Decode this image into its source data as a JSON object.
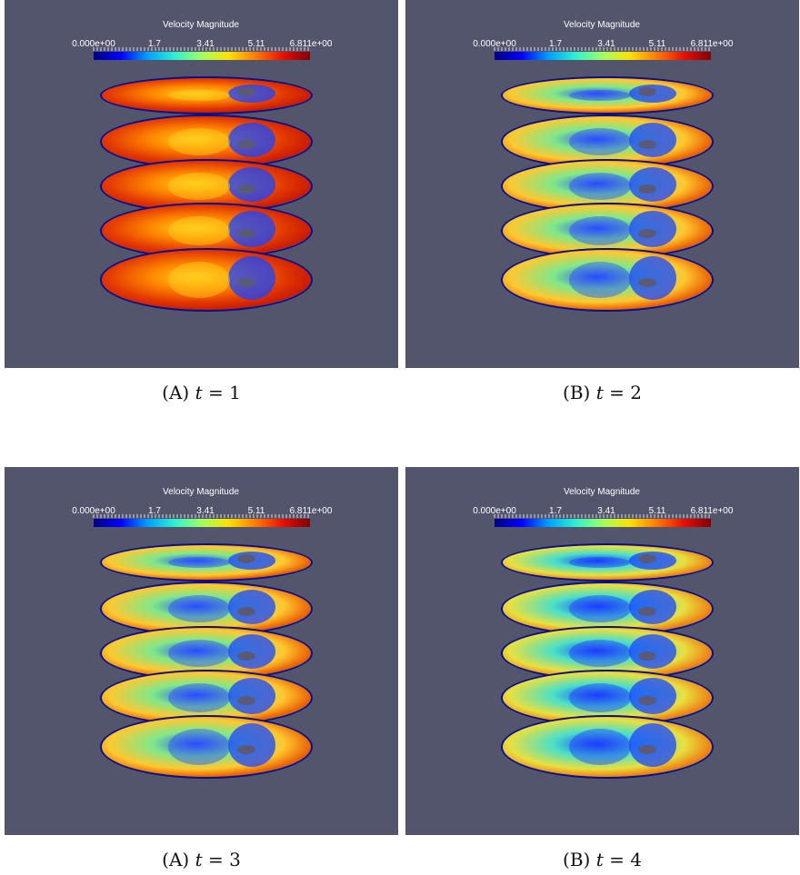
{
  "figure": {
    "panels": [
      {
        "id": "a1",
        "label": "(A)",
        "equation_var": "t",
        "equation_op": "=",
        "equation_val": "1",
        "legend_title": "Velocity Magnitude",
        "scale_ticks": [
          "0.000e+00",
          "1.7",
          "3.41",
          "5.11",
          "6.811e+00"
        ],
        "dominant": "red"
      },
      {
        "id": "b1",
        "label": "(B)",
        "equation_var": "t",
        "equation_op": "=",
        "equation_val": "2",
        "legend_title": "Velocity Magnitude",
        "scale_ticks": [
          "0.000e+00",
          "1.7",
          "3.41",
          "5.11",
          "6.811e+00"
        ],
        "dominant": "mixed"
      },
      {
        "id": "a2",
        "label": "(A)",
        "equation_var": "t",
        "equation_op": "=",
        "equation_val": "3",
        "legend_title": "Velocity Magnitude",
        "scale_ticks": [
          "0.000e+00",
          "1.7",
          "3.41",
          "5.11",
          "6.811e+00"
        ],
        "dominant": "mixed"
      },
      {
        "id": "b2",
        "label": "(B)",
        "equation_var": "t",
        "equation_op": "=",
        "equation_val": "4",
        "legend_title": "Velocity Magnitude",
        "scale_ticks": [
          "0.000e+00",
          "1.7",
          "3.41",
          "5.11",
          "6.811e+00"
        ],
        "dominant": "cool"
      }
    ],
    "colors": {
      "background": "#52556b",
      "colormap": [
        "#00007f",
        "#0000ff",
        "#00a0ff",
        "#2ff0d0",
        "#a0ff60",
        "#ffe000",
        "#ff7a00",
        "#e81000",
        "#7f0000"
      ]
    }
  }
}
